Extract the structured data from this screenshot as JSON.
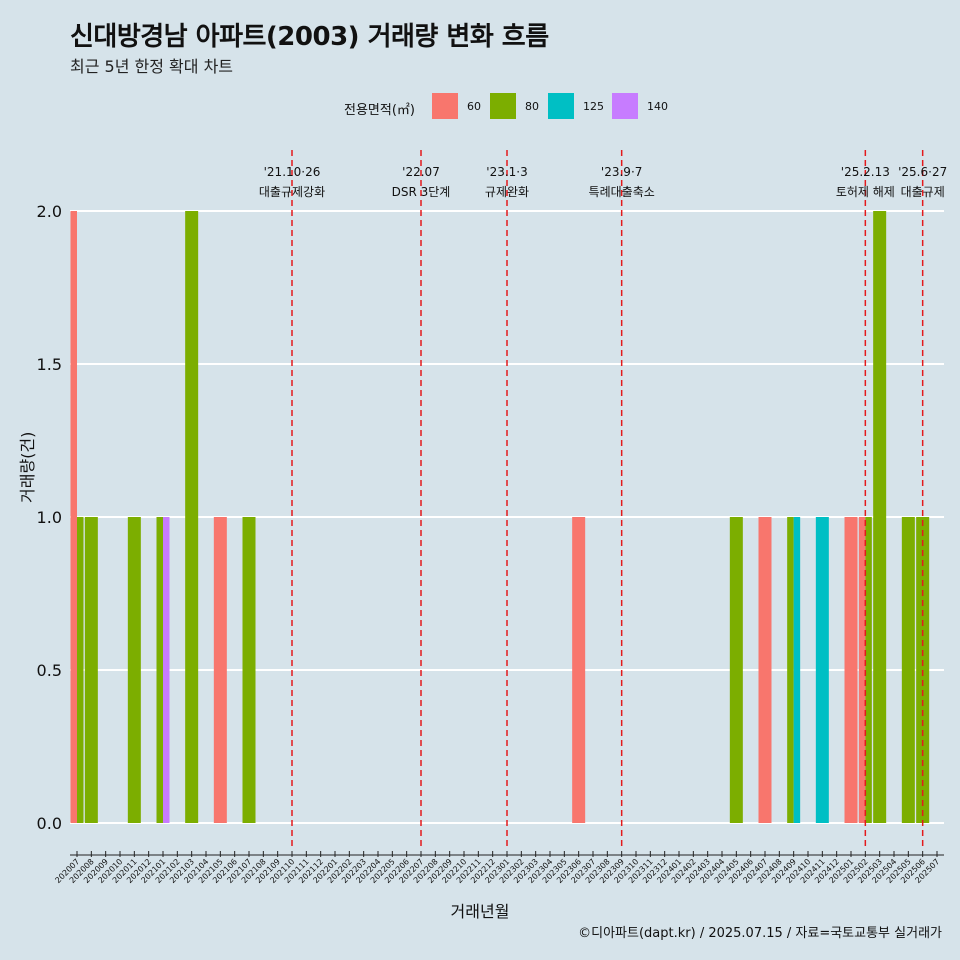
{
  "title": "신대방경남 아파트(2003) 거래량 변화 흐름",
  "subtitle": "최근 5년 한정 확대 차트",
  "caption": "©디아파트(dapt.kr) / 2025.07.15 / 자료=국토교통부 실거래가",
  "legend": {
    "title": "전용면적(㎡)",
    "items": [
      {
        "label": "60",
        "color": "#f8766d"
      },
      {
        "label": "80",
        "color": "#7cae00"
      },
      {
        "label": "125",
        "color": "#00bfc4"
      },
      {
        "label": "140",
        "color": "#c77cff"
      }
    ]
  },
  "chart_data": {
    "type": "bar",
    "xlabel": "거래년월",
    "ylabel": "거래량(건)",
    "ylim": [
      0,
      2
    ],
    "yticks": [
      "0.0",
      "0.5",
      "1.0",
      "1.5",
      "2.0"
    ],
    "grid": "horizontal",
    "legend_position": "top",
    "categories": [
      "202007",
      "202008",
      "202009",
      "202010",
      "202011",
      "202012",
      "202101",
      "202102",
      "202103",
      "202104",
      "202105",
      "202106",
      "202107",
      "202108",
      "202109",
      "202110",
      "202111",
      "202112",
      "202201",
      "202202",
      "202203",
      "202204",
      "202205",
      "202206",
      "202207",
      "202208",
      "202209",
      "202210",
      "202211",
      "202212",
      "202301",
      "202302",
      "202303",
      "202304",
      "202305",
      "202306",
      "202307",
      "202308",
      "202309",
      "202310",
      "202311",
      "202312",
      "202401",
      "202402",
      "202403",
      "202404",
      "202405",
      "202406",
      "202407",
      "202408",
      "202409",
      "202410",
      "202411",
      "202412",
      "202501",
      "202502",
      "202503",
      "202504",
      "202505",
      "202506",
      "202507"
    ],
    "series": [
      {
        "name": "60",
        "color": "#f8766d",
        "points": [
          [
            "202007",
            2
          ],
          [
            "202105",
            1
          ],
          [
            "202306",
            1
          ],
          [
            "202407",
            1
          ],
          [
            "202501",
            1
          ],
          [
            "202502",
            1
          ]
        ]
      },
      {
        "name": "80",
        "color": "#7cae00",
        "points": [
          [
            "202007",
            1
          ],
          [
            "202008",
            1
          ],
          [
            "202011",
            1
          ],
          [
            "202101",
            1
          ],
          [
            "202103",
            2
          ],
          [
            "202107",
            1
          ],
          [
            "202405",
            1
          ],
          [
            "202409",
            1
          ],
          [
            "202502",
            1
          ],
          [
            "202503",
            2
          ],
          [
            "202505",
            1
          ],
          [
            "202506",
            1
          ]
        ]
      },
      {
        "name": "125",
        "color": "#00bfc4",
        "points": [
          [
            "202409",
            1
          ],
          [
            "202411",
            1
          ]
        ]
      },
      {
        "name": "140",
        "color": "#c77cff",
        "points": [
          [
            "202101",
            1
          ]
        ]
      }
    ],
    "events": [
      {
        "x": "202110",
        "line1": "'21.10·26",
        "line2": "대출규제강화"
      },
      {
        "x": "202207",
        "line1": "'22.07",
        "line2": "DSR 3단계"
      },
      {
        "x": "202301",
        "line1": "'23.1·3",
        "line2": "규제완화"
      },
      {
        "x": "202309",
        "line1": "'23.9·7",
        "line2": "특례대출축소"
      },
      {
        "x": "202502",
        "line1": "'25.2.13",
        "line2": "토허제 해제"
      },
      {
        "x": "202506",
        "line1": "'25.6·27",
        "line2": "대출규제"
      }
    ]
  }
}
